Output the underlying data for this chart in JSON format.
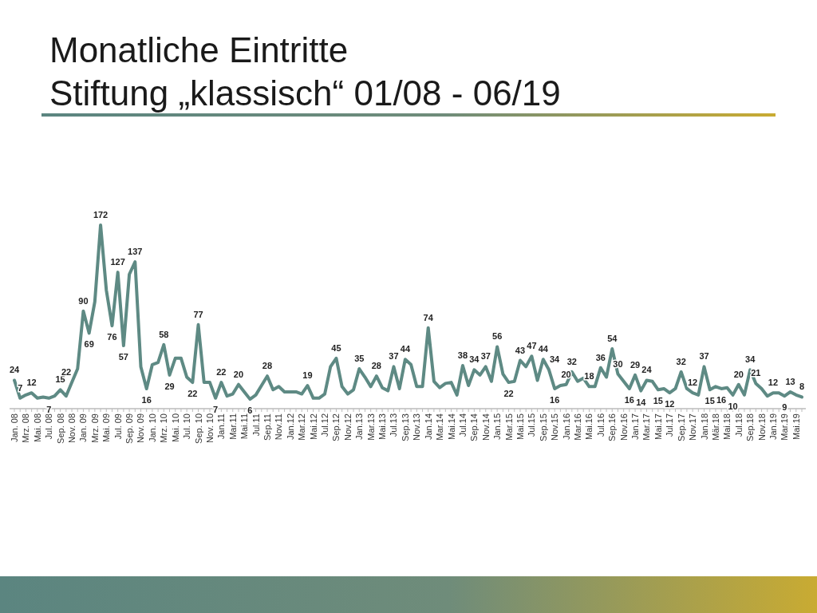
{
  "chart_data": {
    "type": "line",
    "title": "Monatliche Eintritte\nStiftung „klassisch“ 01/08 - 06/19",
    "categories": [
      "Jan. 08",
      null,
      "Mrz. 08",
      null,
      "Mai. 08",
      null,
      "Jul. 08",
      null,
      "Sep. 08",
      null,
      "Nov. 08",
      null,
      "Jan. 09",
      null,
      "Mrz. 09",
      null,
      "Mai. 09",
      null,
      "Jul. 09",
      null,
      "Sep. 09",
      null,
      "Nov. 09",
      null,
      "Jan. 10",
      null,
      "Mrz. 10",
      null,
      "Mai. 10",
      null,
      "Jul. 10",
      null,
      "Sep. 10",
      null,
      "Nov. 10",
      null,
      "Jan.11",
      null,
      "Mar.11",
      null,
      "Mai.11",
      null,
      "Jul.11",
      null,
      "Sep.11",
      null,
      "Nov.11",
      null,
      "Jan.12",
      null,
      "Mar.12",
      null,
      "Mai.12",
      null,
      "Jul.12",
      null,
      "Sep.12",
      null,
      "Nov.12",
      null,
      "Jan.13",
      null,
      "Mar.13",
      null,
      "Mai.13",
      null,
      "Jul.13",
      null,
      "Sep.13",
      null,
      "Nov.13",
      null,
      "Jan.14",
      null,
      "Mar.14",
      null,
      "Mai.14",
      null,
      "Jul.14",
      null,
      "Sep.14",
      null,
      "Nov.14",
      null,
      "Jan.15",
      null,
      "Mar.15",
      null,
      "Mai.15",
      null,
      "Jul.15",
      null,
      "Sep.15",
      null,
      "Nov.15",
      null,
      "Jan.16",
      null,
      "Mar.16",
      null,
      "Mai.16",
      null,
      "Jul.16",
      null,
      "Sep.16",
      null,
      "Nov.16",
      null,
      "Jan.17",
      null,
      "Mar.17",
      null,
      "Mai.17",
      null,
      "Jul.17",
      null,
      "Sep.17",
      null,
      "Nov.17",
      null,
      "Jan.18",
      null,
      "Mär.18",
      null,
      "Mai.18",
      null,
      "Jul.18",
      null,
      "Sep.18",
      null,
      "Nov.18",
      null,
      "Jan.19",
      null,
      "Mar.19",
      null,
      "Mai.19",
      null
    ],
    "series": [
      {
        "color": "#5e8a84",
        "values": [
          24,
          7,
          10,
          12,
          7,
          8,
          7,
          9,
          15,
          9,
          22,
          35,
          90,
          69,
          99,
          172,
          110,
          76,
          127,
          57,
          125,
          137,
          37,
          16,
          39,
          41,
          58,
          29,
          45,
          45,
          27,
          22,
          77,
          22,
          22,
          7,
          22,
          9,
          11,
          20,
          13,
          6,
          10,
          19,
          28,
          15,
          18,
          13,
          13,
          13,
          11,
          19,
          7,
          7,
          11,
          37,
          45,
          18,
          11,
          15,
          35,
          27,
          18,
          28,
          17,
          14,
          37,
          16,
          44,
          39,
          18,
          18,
          74,
          23,
          17,
          21,
          22,
          10,
          38,
          19,
          34,
          29,
          37,
          23,
          56,
          30,
          22,
          23,
          43,
          37,
          47,
          24,
          44,
          34,
          16,
          19,
          20,
          32,
          23,
          26,
          18,
          18,
          36,
          27,
          54,
          30,
          23,
          16,
          29,
          14,
          24,
          23,
          15,
          16,
          12,
          16,
          32,
          16,
          12,
          10,
          37,
          15,
          18,
          16,
          17,
          10,
          20,
          10,
          34,
          21,
          16,
          9,
          12,
          12,
          9,
          13,
          10,
          8
        ],
        "value_labels": [
          "24",
          "7",
          null,
          "12",
          null,
          null,
          "7",
          null,
          "15",
          null,
          "22",
          null,
          "90",
          "69",
          null,
          "172",
          null,
          "76",
          "127",
          "57",
          null,
          "137",
          null,
          "16",
          null,
          null,
          "58",
          "29",
          null,
          null,
          null,
          "22",
          "77",
          null,
          null,
          "7",
          "22",
          null,
          null,
          "20",
          null,
          "6",
          null,
          null,
          "28",
          null,
          null,
          null,
          null,
          null,
          null,
          "19",
          null,
          null,
          null,
          null,
          "45",
          null,
          null,
          null,
          "35",
          null,
          null,
          "28",
          null,
          null,
          "37",
          null,
          "44",
          null,
          null,
          null,
          "74",
          null,
          null,
          null,
          null,
          null,
          "38",
          null,
          "34",
          null,
          "37",
          null,
          "56",
          null,
          "22",
          null,
          "43",
          null,
          "47",
          null,
          "44",
          "34",
          "16",
          null,
          "20",
          "32",
          null,
          null,
          "18",
          null,
          "36",
          null,
          "54",
          "30",
          null,
          "16",
          "29",
          "14",
          "24",
          null,
          "15",
          null,
          "12",
          null,
          "32",
          null,
          "12",
          null,
          "37",
          "15",
          null,
          "16",
          null,
          "10",
          "20",
          null,
          "34",
          "21",
          null,
          null,
          "12",
          null,
          "9",
          "13",
          null,
          "8"
        ]
      }
    ]
  }
}
